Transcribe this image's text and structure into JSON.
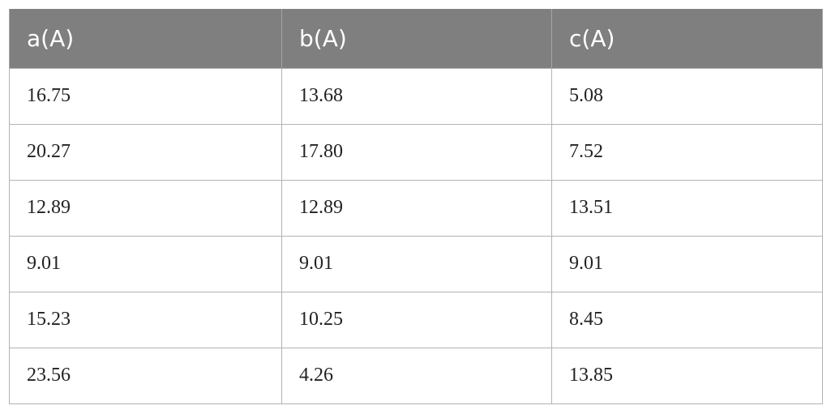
{
  "table": {
    "columns": [
      "a(A)",
      "b(A)",
      "c(A)"
    ],
    "rows": [
      [
        "16.75",
        "13.68",
        "5.08"
      ],
      [
        "20.27",
        "17.80",
        "7.52"
      ],
      [
        "12.89",
        "12.89",
        "13.51"
      ],
      [
        "9.01",
        "9.01",
        "9.01"
      ],
      [
        "15.23",
        "10.25",
        "8.45"
      ],
      [
        "23.56",
        "4.26",
        "13.85"
      ]
    ]
  },
  "colors": {
    "header_bg": "#7f7f7f",
    "header_text": "#ffffff",
    "grid": "#b3b3b3"
  }
}
